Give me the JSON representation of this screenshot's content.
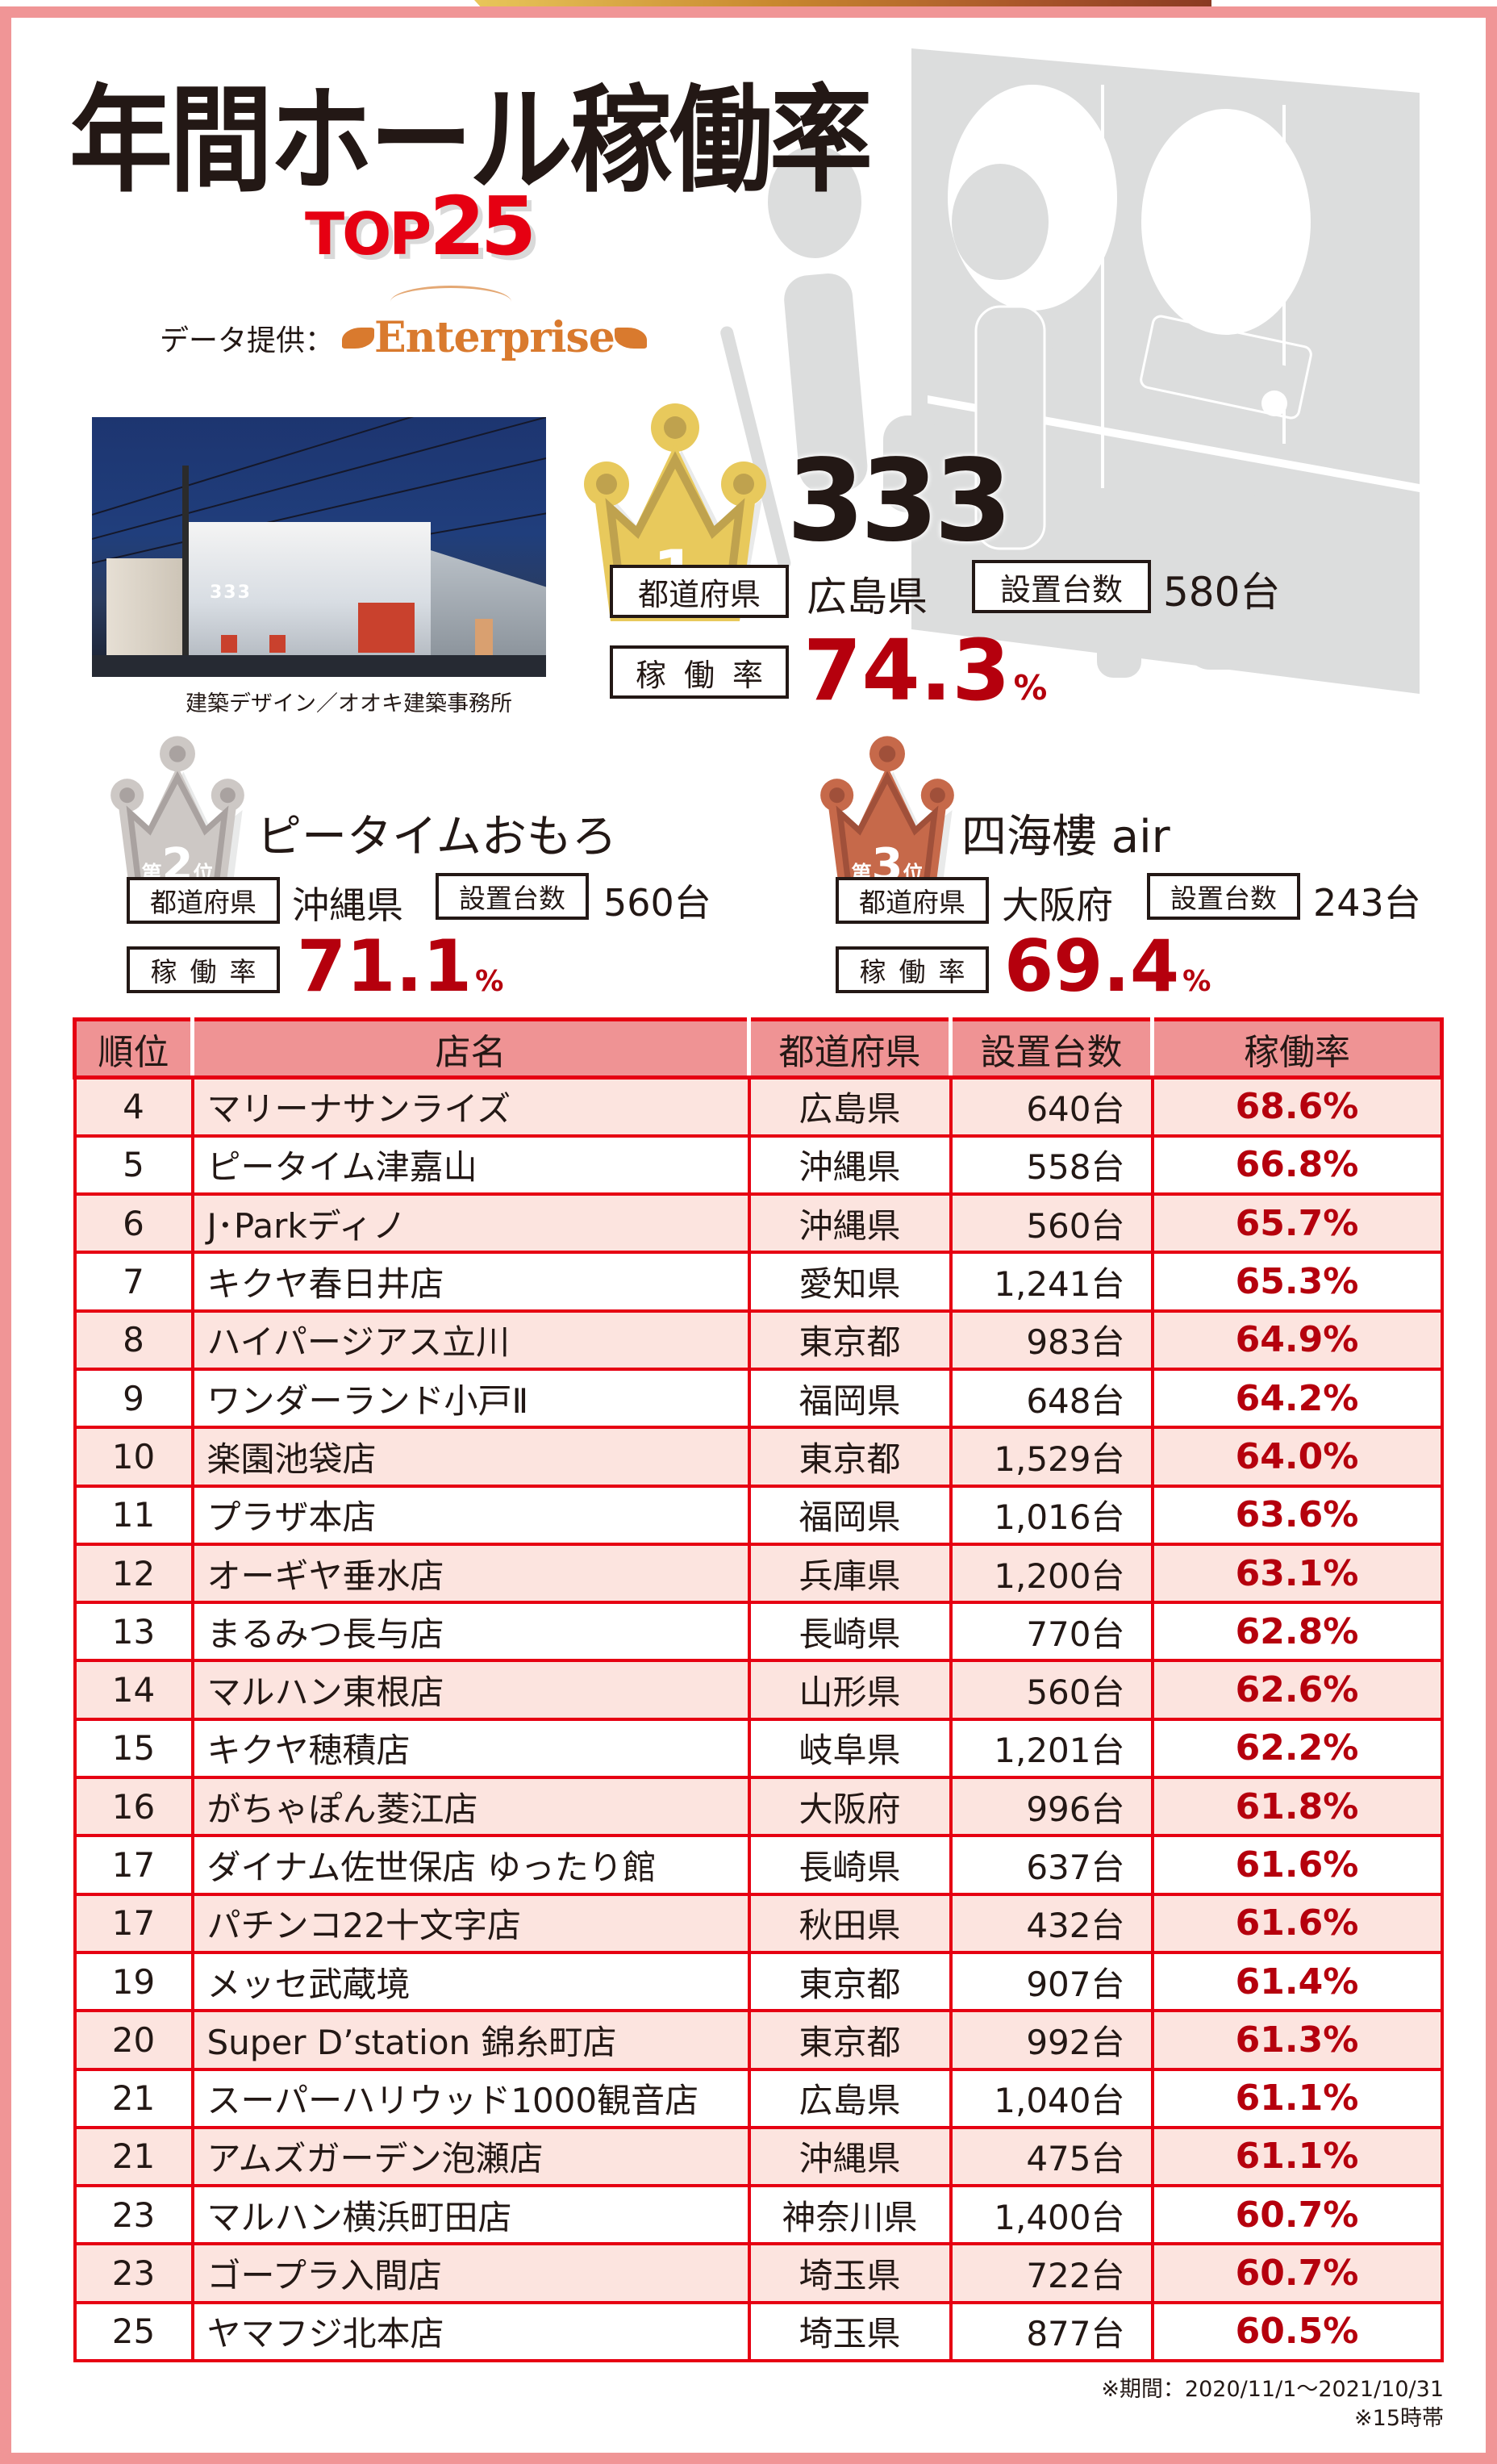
{
  "header": {
    "title": "年間ホール稼働率",
    "subtitle_top": "TOP",
    "subtitle_num": "25",
    "credit_label": "データ提供：",
    "credit_logo": "Enterprise"
  },
  "photo": {
    "sign": "333",
    "caption": "建築デザイン／オオキ建築事務所"
  },
  "labels": {
    "prefecture": "都道府県",
    "units": "設置台数",
    "rate": "稼働率",
    "percent": "%"
  },
  "podium": [
    {
      "rank_prefix": "第",
      "rank": "1",
      "rank_suffix": "位",
      "name": "333",
      "prefecture": "広島県",
      "units": "580台",
      "rate": "74.3",
      "crown_color": "#e8c95c",
      "crown_shade": "#bfa24e"
    },
    {
      "rank_prefix": "第",
      "rank": "2",
      "rank_suffix": "位",
      "name": "ピータイムおもろ",
      "prefecture": "沖縄県",
      "units": "560台",
      "rate": "71.1",
      "crown_color": "#cdc8c5",
      "crown_shade": "#a9a2a0"
    },
    {
      "rank_prefix": "第",
      "rank": "3",
      "rank_suffix": "位",
      "name": "四海樓 air",
      "prefecture": "大阪府",
      "units": "243台",
      "rate": "69.4",
      "crown_color": "#c6694a",
      "crown_shade": "#a0503a"
    }
  ],
  "table": {
    "headers": [
      "順位",
      "店名",
      "都道府県",
      "設置台数",
      "稼働率"
    ],
    "rows": [
      {
        "rank": "4",
        "name": "マリーナサンライズ",
        "prefecture": "広島県",
        "units": "640台",
        "rate": "68.6%"
      },
      {
        "rank": "5",
        "name": "ピータイム津嘉山",
        "prefecture": "沖縄県",
        "units": "558台",
        "rate": "66.8%"
      },
      {
        "rank": "6",
        "name": "J･Parkディノ",
        "prefecture": "沖縄県",
        "units": "560台",
        "rate": "65.7%"
      },
      {
        "rank": "7",
        "name": "キクヤ春日井店",
        "prefecture": "愛知県",
        "units": "1,241台",
        "rate": "65.3%"
      },
      {
        "rank": "8",
        "name": "ハイパージアス立川",
        "prefecture": "東京都",
        "units": "983台",
        "rate": "64.9%"
      },
      {
        "rank": "9",
        "name": "ワンダーランド小戸Ⅱ",
        "prefecture": "福岡県",
        "units": "648台",
        "rate": "64.2%"
      },
      {
        "rank": "10",
        "name": "楽園池袋店",
        "prefecture": "東京都",
        "units": "1,529台",
        "rate": "64.0%"
      },
      {
        "rank": "11",
        "name": "プラザ本店",
        "prefecture": "福岡県",
        "units": "1,016台",
        "rate": "63.6%"
      },
      {
        "rank": "12",
        "name": "オーギヤ垂水店",
        "prefecture": "兵庫県",
        "units": "1,200台",
        "rate": "63.1%"
      },
      {
        "rank": "13",
        "name": "まるみつ長与店",
        "prefecture": "長崎県",
        "units": "770台",
        "rate": "62.8%"
      },
      {
        "rank": "14",
        "name": "マルハン東根店",
        "prefecture": "山形県",
        "units": "560台",
        "rate": "62.6%"
      },
      {
        "rank": "15",
        "name": "キクヤ穂積店",
        "prefecture": "岐阜県",
        "units": "1,201台",
        "rate": "62.2%"
      },
      {
        "rank": "16",
        "name": "がちゃぽん菱江店",
        "prefecture": "大阪府",
        "units": "996台",
        "rate": "61.8%"
      },
      {
        "rank": "17",
        "name": "ダイナム佐世保店 ゆったり館",
        "prefecture": "長崎県",
        "units": "637台",
        "rate": "61.6%"
      },
      {
        "rank": "17",
        "name": "パチンコ22十文字店",
        "prefecture": "秋田県",
        "units": "432台",
        "rate": "61.6%"
      },
      {
        "rank": "19",
        "name": "メッセ武蔵境",
        "prefecture": "東京都",
        "units": "907台",
        "rate": "61.4%"
      },
      {
        "rank": "20",
        "name": "Super D’station 錦糸町店",
        "prefecture": "東京都",
        "units": "992台",
        "rate": "61.3%"
      },
      {
        "rank": "21",
        "name": "スーパーハリウッド1000観音店",
        "prefecture": "広島県",
        "units": "1,040台",
        "rate": "61.1%"
      },
      {
        "rank": "21",
        "name": "アムズガーデン泡瀬店",
        "prefecture": "沖縄県",
        "units": "475台",
        "rate": "61.1%"
      },
      {
        "rank": "23",
        "name": "マルハン横浜町田店",
        "prefecture": "神奈川県",
        "units": "1,400台",
        "rate": "60.7%"
      },
      {
        "rank": "23",
        "name": "ゴープラ入間店",
        "prefecture": "埼玉県",
        "units": "722台",
        "rate": "60.7%"
      },
      {
        "rank": "25",
        "name": "ヤマフジ北本店",
        "prefecture": "埼玉県",
        "units": "877台",
        "rate": "60.5%"
      }
    ]
  },
  "footnotes": {
    "period": "※期間：2020/11/1～2021/10/31",
    "time": "※15時帯"
  },
  "colors": {
    "frame": "#f09596",
    "table_border": "#e60012",
    "header_bg": "#ef9394",
    "row_tint": "#fce4df",
    "rate_red": "#b5000d",
    "title_red": "#e60012",
    "logo_orange": "#d97a2e"
  }
}
